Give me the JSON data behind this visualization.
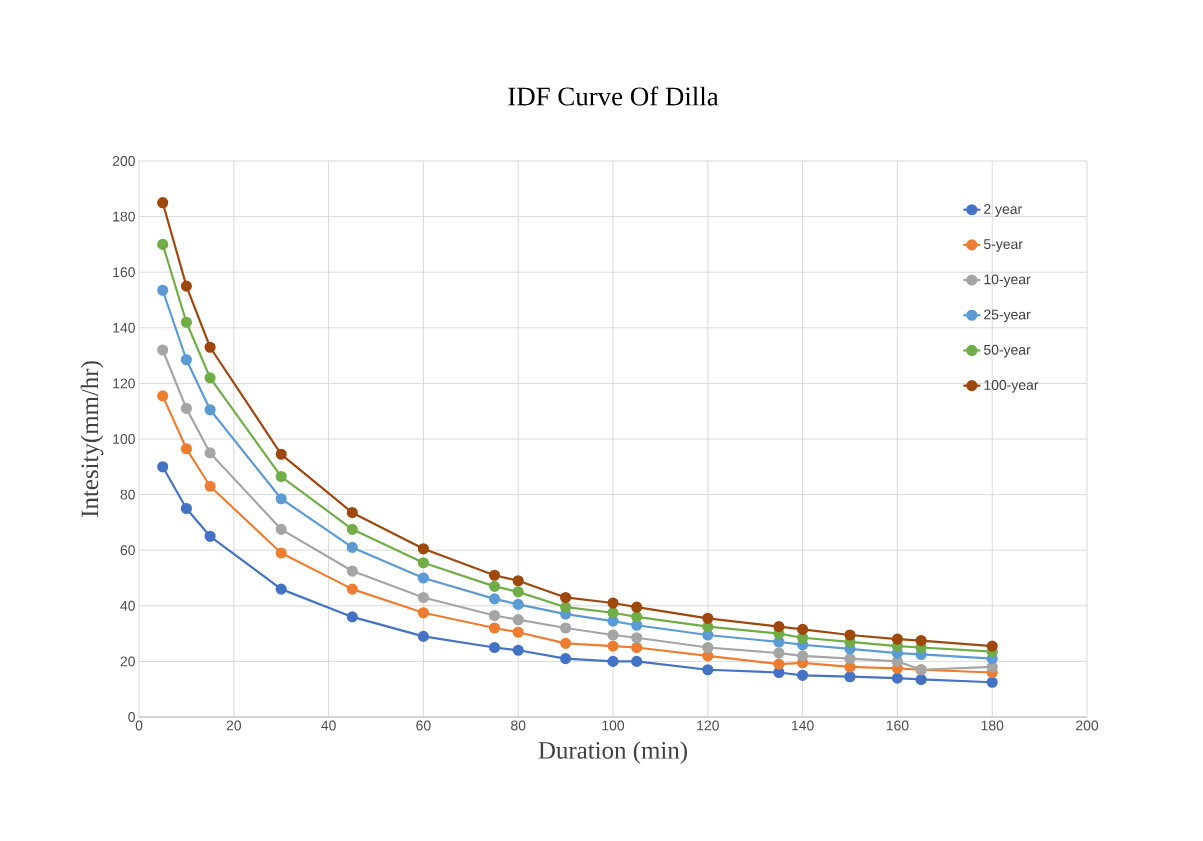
{
  "chart_data": {
    "type": "line",
    "title": "IDF Curve Of Dilla",
    "xlabel": "Duration (min)",
    "ylabel": "Intesity(mm/hr)",
    "x": [
      5,
      10,
      15,
      30,
      45,
      60,
      75,
      80,
      90,
      100,
      105,
      120,
      135,
      140,
      150,
      160,
      165,
      180
    ],
    "series": [
      {
        "name": "2 year",
        "color": "#4472c4",
        "values": [
          90,
          75,
          65,
          46,
          36,
          29,
          25,
          24,
          21,
          20,
          20,
          17,
          16,
          15,
          14.5,
          14,
          13.5,
          12.5
        ]
      },
      {
        "name": "5-year",
        "color": "#ed7d31",
        "values": [
          115.5,
          96.5,
          83,
          59,
          46,
          37.5,
          32,
          30.5,
          26.5,
          25.5,
          25,
          22,
          19,
          19.5,
          18,
          17.5,
          17,
          16
        ]
      },
      {
        "name": "10-year",
        "color": "#a5a5a5",
        "values": [
          132,
          111,
          95,
          67.5,
          52.5,
          43,
          36.5,
          35,
          32,
          29.5,
          28.5,
          25,
          23,
          22,
          21,
          20,
          17,
          18
        ]
      },
      {
        "name": "25-year",
        "color": "#5b9bd5",
        "values": [
          153.5,
          128.5,
          110.5,
          78.5,
          61,
          50,
          42.5,
          40.5,
          37,
          34.5,
          33,
          29.5,
          27,
          26,
          24.5,
          23,
          22.5,
          21
        ]
      },
      {
        "name": "50-year",
        "color": "#70ad47",
        "values": [
          170,
          142,
          122,
          86.5,
          67.5,
          55.5,
          47,
          45,
          39.5,
          37.5,
          36,
          32.5,
          30,
          28.5,
          27,
          25.5,
          25,
          23.5
        ]
      },
      {
        "name": "100-year",
        "color": "#9e480e",
        "values": [
          185,
          155,
          133,
          94.5,
          73.5,
          60.5,
          51,
          49,
          43,
          41,
          39.5,
          35.5,
          32.5,
          31.5,
          29.5,
          28,
          27.5,
          25.5
        ]
      }
    ],
    "xlim": [
      0,
      200
    ],
    "ylim": [
      0,
      200
    ],
    "xticks": [
      0,
      20,
      40,
      60,
      80,
      100,
      120,
      140,
      160,
      180,
      200
    ],
    "yticks": [
      0,
      20,
      40,
      60,
      80,
      100,
      120,
      140,
      160,
      180,
      200
    ],
    "grid": true,
    "legend": "right",
    "marker": "circle",
    "line_style": "solid"
  }
}
